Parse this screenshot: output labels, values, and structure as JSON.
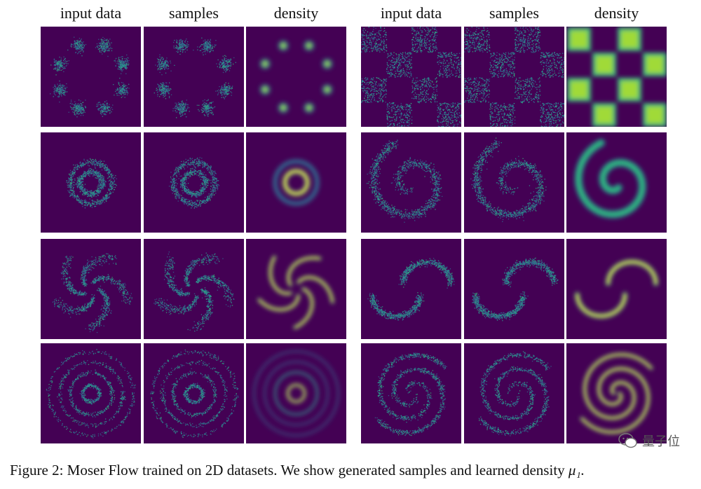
{
  "headers": {
    "left": [
      "input data",
      "samples",
      "density"
    ],
    "right": [
      "input data",
      "samples",
      "density"
    ]
  },
  "figure": {
    "rows": [
      {
        "left": "gaussian-ring",
        "right": "checkerboard"
      },
      {
        "left": "concentric-rings",
        "right": "spiral"
      },
      {
        "left": "pinwheel",
        "right": "moons"
      },
      {
        "left": "multi-rings",
        "right": "double-spiral"
      }
    ],
    "colors": {
      "background": "#440154",
      "low": "#31688e",
      "mid": "#35b779",
      "high": "#fde725"
    }
  },
  "caption": {
    "text": "Figure 2: Moser Flow trained on 2D datasets. We show generated samples and learned density ",
    "equation": "μ₁."
  },
  "watermark": {
    "text": "量子位",
    "icon": "wechat-logo-icon"
  }
}
